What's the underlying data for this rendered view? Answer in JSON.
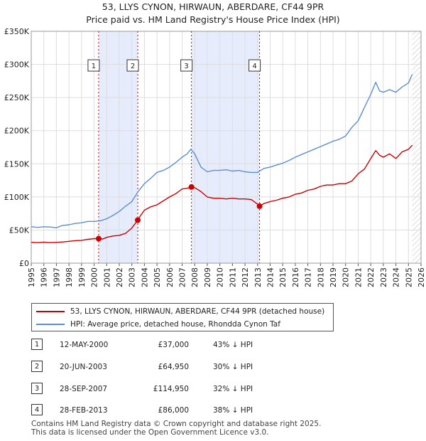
{
  "chart_data": {
    "type": "line",
    "title": "53, LLYS CYNON, HIRWAUN, ABERDARE, CF44 9PR",
    "subtitle": "Price paid vs. HM Land Registry's House Price Index (HPI)",
    "xlim": [
      1995,
      2026
    ],
    "ylim": [
      0,
      350000
    ],
    "x_ticks": [
      1995,
      1996,
      1997,
      1998,
      1999,
      2000,
      2001,
      2002,
      2003,
      2004,
      2005,
      2006,
      2007,
      2008,
      2009,
      2010,
      2011,
      2012,
      2013,
      2014,
      2015,
      2016,
      2017,
      2018,
      2019,
      2020,
      2021,
      2022,
      2023,
      2024,
      2025,
      2026
    ],
    "y_ticks": [
      {
        "value": 0,
        "label": "£0"
      },
      {
        "value": 50000,
        "label": "£50K"
      },
      {
        "value": 100000,
        "label": "£100K"
      },
      {
        "value": 150000,
        "label": "£150K"
      },
      {
        "value": 200000,
        "label": "£200K"
      },
      {
        "value": 250000,
        "label": "£250K"
      },
      {
        "value": 300000,
        "label": "£300K"
      },
      {
        "value": 350000,
        "label": "£350K"
      }
    ],
    "grid": true,
    "shaded_ranges": [
      [
        2000.36,
        2003.47
      ],
      [
        2007.74,
        2013.16
      ]
    ],
    "data_end_x": 2025.3,
    "series": [
      {
        "name": "53, LLYS CYNON, HIRWAUN, ABERDARE, CF44 9PR (detached house)",
        "color": "#cc0000",
        "x": [
          1995,
          1995.5,
          1996,
          1996.5,
          1997,
          1997.5,
          1998,
          1998.5,
          1999,
          1999.5,
          2000,
          2000.36,
          2000.7,
          2001,
          2001.5,
          2002,
          2002.5,
          2003,
          2003.47,
          2003.7,
          2004,
          2004.5,
          2005,
          2005.5,
          2006,
          2006.5,
          2007,
          2007.4,
          2007.74,
          2008,
          2008.5,
          2009,
          2009.5,
          2010,
          2010.5,
          2011,
          2011.5,
          2012,
          2012.5,
          2013,
          2013.16,
          2013.5,
          2014,
          2014.5,
          2015,
          2015.5,
          2016,
          2016.5,
          2017,
          2017.5,
          2018,
          2018.5,
          2019,
          2019.5,
          2020,
          2020.5,
          2021,
          2021.5,
          2022,
          2022.4,
          2022.7,
          2023,
          2023.5,
          2024,
          2024.5,
          2025,
          2025.3
        ],
        "values": [
          31500,
          31000,
          31800,
          31000,
          31500,
          32000,
          33000,
          34000,
          34500,
          36000,
          37000,
          37000,
          36500,
          39000,
          41000,
          42000,
          45000,
          53000,
          64950,
          72000,
          80000,
          85000,
          88000,
          94000,
          100000,
          105000,
          112000,
          113000,
          114950,
          114000,
          108000,
          100000,
          98000,
          98000,
          97000,
          98000,
          97000,
          97000,
          96000,
          89000,
          86000,
          90000,
          93000,
          95000,
          98000,
          100000,
          104000,
          106000,
          110000,
          112000,
          116000,
          118000,
          118000,
          120000,
          120000,
          124000,
          135000,
          142000,
          158000,
          170000,
          163000,
          160000,
          165000,
          158000,
          168000,
          172000,
          178000
        ]
      },
      {
        "name": "HPI: Average price, detached house, Rhondda Cynon Taf",
        "color": "#5b8fd0",
        "x": [
          1995,
          1995.5,
          1996,
          1996.5,
          1997,
          1997.5,
          1998,
          1998.5,
          1999,
          1999.5,
          2000,
          2000.5,
          2001,
          2001.5,
          2002,
          2002.5,
          2003,
          2003.5,
          2004,
          2004.5,
          2005,
          2005.5,
          2006,
          2006.5,
          2007,
          2007.4,
          2007.7,
          2008,
          2008.5,
          2009,
          2009.5,
          2010,
          2010.5,
          2011,
          2011.5,
          2012,
          2012.5,
          2013,
          2013.5,
          2014,
          2014.5,
          2015,
          2015.5,
          2016,
          2016.5,
          2017,
          2017.5,
          2018,
          2018.5,
          2019,
          2019.5,
          2020,
          2020.5,
          2021,
          2021.5,
          2022,
          2022.4,
          2022.7,
          2023,
          2023.5,
          2024,
          2024.5,
          2025,
          2025.3
        ],
        "values": [
          55000,
          54000,
          55000,
          54500,
          53500,
          57000,
          58000,
          60000,
          61000,
          63000,
          63000,
          64000,
          67000,
          72000,
          78000,
          86000,
          93000,
          108000,
          120000,
          128000,
          137000,
          140000,
          145000,
          152000,
          160000,
          165000,
          172000,
          165000,
          145000,
          138000,
          140000,
          140000,
          141000,
          139000,
          140000,
          138000,
          137000,
          137000,
          143000,
          145000,
          148000,
          151000,
          155000,
          160000,
          164000,
          168000,
          172000,
          176000,
          180000,
          184000,
          187000,
          192000,
          205000,
          215000,
          235000,
          255000,
          273000,
          260000,
          258000,
          262000,
          258000,
          266000,
          272000,
          285000
        ]
      }
    ],
    "sales": [
      {
        "num": "1",
        "x": 2000.36,
        "value": 37000
      },
      {
        "num": "2",
        "x": 2003.47,
        "value": 64950
      },
      {
        "num": "3",
        "x": 2007.74,
        "value": 114950
      },
      {
        "num": "4",
        "x": 2013.16,
        "value": 86000
      }
    ]
  },
  "legend": {
    "property": "53, LLYS CYNON, HIRWAUN, ABERDARE, CF44 9PR (detached house)",
    "hpi": "HPI: Average price, detached house, Rhondda Cynon Taf"
  },
  "transactions": [
    {
      "num": "1",
      "date": "12-MAY-2000",
      "price": "£37,000",
      "hpi": "43% ↓ HPI"
    },
    {
      "num": "2",
      "date": "20-JUN-2003",
      "price": "£64,950",
      "hpi": "30% ↓ HPI"
    },
    {
      "num": "3",
      "date": "28-SEP-2007",
      "price": "£114,950",
      "hpi": "32% ↓ HPI"
    },
    {
      "num": "4",
      "date": "28-FEB-2013",
      "price": "£86,000",
      "hpi": "38% ↓ HPI"
    }
  ],
  "footer": {
    "line1": "Contains HM Land Registry data © Crown copyright and database right 2025.",
    "line2": "This data is licensed under the Open Government Licence v3.0."
  }
}
